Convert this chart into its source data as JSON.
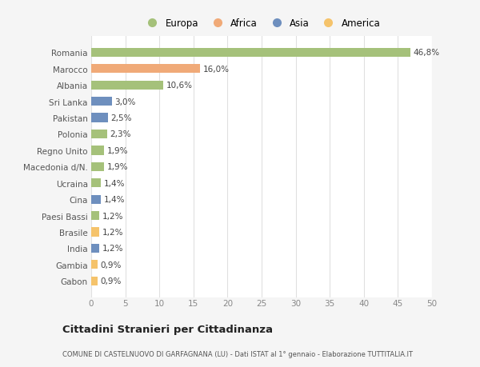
{
  "categories": [
    "Gabon",
    "Gambia",
    "India",
    "Brasile",
    "Paesi Bassi",
    "Cina",
    "Ucraina",
    "Macedonia d/N.",
    "Regno Unito",
    "Polonia",
    "Pakistan",
    "Sri Lanka",
    "Albania",
    "Marocco",
    "Romania"
  ],
  "values": [
    0.9,
    0.9,
    1.2,
    1.2,
    1.2,
    1.4,
    1.4,
    1.9,
    1.9,
    2.3,
    2.5,
    3.0,
    10.6,
    16.0,
    46.8
  ],
  "labels": [
    "0,9%",
    "0,9%",
    "1,2%",
    "1,2%",
    "1,2%",
    "1,4%",
    "1,4%",
    "1,9%",
    "1,9%",
    "2,3%",
    "2,5%",
    "3,0%",
    "10,6%",
    "16,0%",
    "46,8%"
  ],
  "colors": [
    "#f5c36b",
    "#f5c36b",
    "#6e8fbe",
    "#f5c36b",
    "#a5c17a",
    "#6e8fbe",
    "#a5c17a",
    "#a5c17a",
    "#a5c17a",
    "#a5c17a",
    "#6e8fbe",
    "#6e8fbe",
    "#a5c17a",
    "#f0aa78",
    "#a5c17a"
  ],
  "legend_labels": [
    "Europa",
    "Africa",
    "Asia",
    "America"
  ],
  "legend_colors": [
    "#a5c17a",
    "#f0aa78",
    "#6e8fbe",
    "#f5c36b"
  ],
  "title": "Cittadini Stranieri per Cittadinanza",
  "subtitle": "COMUNE DI CASTELNUOVO DI GARFAGNANA (LU) - Dati ISTAT al 1° gennaio - Elaborazione TUTTITALIA.IT",
  "xlim": [
    0,
    50
  ],
  "xticks": [
    0,
    5,
    10,
    15,
    20,
    25,
    30,
    35,
    40,
    45,
    50
  ],
  "background_color": "#f5f5f5",
  "bar_background": "#ffffff",
  "grid_color": "#e0e0e0",
  "label_fontsize": 7.5,
  "tick_fontsize": 7.5,
  "ylabel_fontsize": 7.5
}
